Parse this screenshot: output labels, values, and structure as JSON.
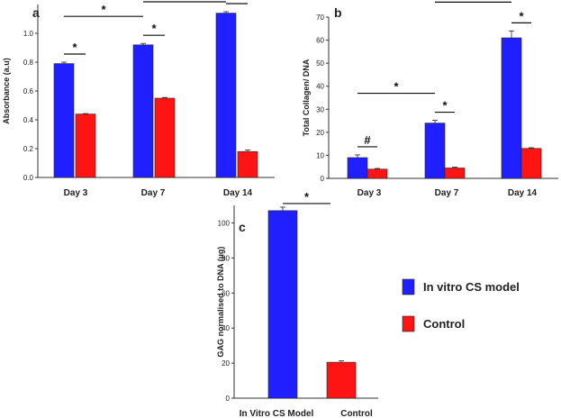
{
  "colors": {
    "series1": "#1f1fff",
    "series2": "#ff1414",
    "axis": "#333333"
  },
  "legend": [
    {
      "label": "In vitro CS model",
      "color": "#1f1fff"
    },
    {
      "label": "Control",
      "color": "#ff1414"
    }
  ],
  "chart_data": [
    {
      "panel": "a",
      "type": "bar",
      "categories": [
        "Day 3",
        "Day 7",
        "Day  14"
      ],
      "ylabel": "Absorbance (a.u)",
      "ylim": [
        0,
        1.2
      ],
      "yticks": [
        "0.0",
        "0.2",
        "0.4",
        "0.6",
        "0.8",
        "1.0"
      ],
      "series": [
        {
          "values": [
            0.79,
            0.92,
            1.14
          ],
          "errors": [
            0.01,
            0.01,
            0.01
          ]
        },
        {
          "values": [
            0.44,
            0.55,
            0.18
          ],
          "errors": [
            0.003,
            0.005,
            0.01
          ]
        }
      ],
      "significance": [
        {
          "label": "*",
          "from": "Day 3 A",
          "to": "Day 3 B"
        },
        {
          "label": "*",
          "from": "Day 7 A",
          "to": "Day 7 B"
        },
        {
          "label": "*",
          "from": "Day 14 A",
          "to": "Day 14 B"
        },
        {
          "label": "*",
          "from": "Day 3 A",
          "to": "Day 7 A"
        },
        {
          "label": "*",
          "from": "Day 7 A",
          "to": "Day 14 A"
        }
      ]
    },
    {
      "panel": "b",
      "type": "bar",
      "categories": [
        "Day 3",
        "Day 7",
        "Day 14"
      ],
      "ylabel": "Total Collagen/ DNA",
      "ylim": [
        0,
        70
      ],
      "yticks": [
        "0",
        "10",
        "20",
        "30",
        "40",
        "50",
        "60",
        "70"
      ],
      "series": [
        {
          "values": [
            9,
            24,
            61
          ],
          "errors": [
            1.2,
            1.2,
            3
          ]
        },
        {
          "values": [
            4,
            4.5,
            13
          ],
          "errors": [
            0.3,
            0.4,
            0.3
          ]
        }
      ],
      "significance": [
        {
          "label": "#",
          "from": "Day 3 A",
          "to": "Day 3 B"
        },
        {
          "label": "*",
          "from": "Day 7 A",
          "to": "Day 7 B"
        },
        {
          "label": "*",
          "from": "Day 14 A",
          "to": "Day 14 B"
        },
        {
          "label": "*",
          "from": "Day 3 A",
          "to": "Day 7 A"
        },
        {
          "label": "*",
          "from": "Day 7 A",
          "to": "Day 14 A"
        }
      ]
    },
    {
      "panel": "c",
      "type": "bar",
      "categories": [
        "In Vitro CS Model",
        "Control"
      ],
      "ylabel": "GAG normalised to DNA (µg)",
      "ylim": [
        0,
        110
      ],
      "yticks": [
        "0",
        "20",
        "40",
        "60",
        "80",
        "100"
      ],
      "values": [
        107,
        20.5
      ],
      "errors": [
        2,
        0.8
      ],
      "significance": [
        {
          "label": "*",
          "from": "In Vitro CS Model",
          "to": "Control"
        }
      ]
    }
  ]
}
